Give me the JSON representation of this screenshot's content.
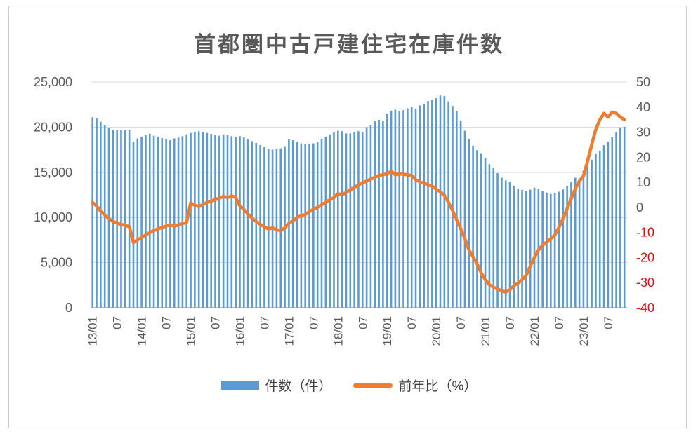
{
  "chart_data": {
    "type": "combo_bar_line",
    "title": "首都圏中古戸建住宅在庫件数",
    "legend_position": "bottom",
    "grid": true,
    "colors": {
      "bar": "#5B9BD5",
      "line": "#ED7D31",
      "axis_text": "#595959",
      "negative_tick": "#FF0000",
      "gridline": "#D9D9D9",
      "axis_line": "#BFBFBF"
    },
    "categories": [
      "13/01",
      "13/02",
      "13/03",
      "13/04",
      "13/05",
      "13/06",
      "13/07",
      "13/08",
      "13/09",
      "13/10",
      "13/11",
      "13/12",
      "14/01",
      "14/02",
      "14/03",
      "14/04",
      "14/05",
      "14/06",
      "14/07",
      "14/08",
      "14/09",
      "14/10",
      "14/11",
      "14/12",
      "15/01",
      "15/02",
      "15/03",
      "15/04",
      "15/05",
      "15/06",
      "15/07",
      "15/08",
      "15/09",
      "15/10",
      "15/11",
      "15/12",
      "16/01",
      "16/02",
      "16/03",
      "16/04",
      "16/05",
      "16/06",
      "16/07",
      "16/08",
      "16/09",
      "16/10",
      "16/11",
      "16/12",
      "17/01",
      "17/02",
      "17/03",
      "17/04",
      "17/05",
      "17/06",
      "17/07",
      "17/08",
      "17/09",
      "17/10",
      "17/11",
      "17/12",
      "18/01",
      "18/02",
      "18/03",
      "18/04",
      "18/05",
      "18/06",
      "18/07",
      "18/08",
      "18/09",
      "18/10",
      "18/11",
      "18/12",
      "19/01",
      "19/02",
      "19/03",
      "19/04",
      "19/05",
      "19/06",
      "19/07",
      "19/08",
      "19/09",
      "19/10",
      "19/11",
      "19/12",
      "20/01",
      "20/02",
      "20/03",
      "20/04",
      "20/05",
      "20/06",
      "20/07",
      "20/08",
      "20/09",
      "20/10",
      "20/11",
      "20/12",
      "21/01",
      "21/02",
      "21/03",
      "21/04",
      "21/05",
      "21/06",
      "21/07",
      "21/08",
      "21/09",
      "21/10",
      "21/11",
      "21/12",
      "22/01",
      "22/02",
      "22/03",
      "22/04",
      "22/05",
      "22/06",
      "22/07",
      "22/08",
      "22/09",
      "22/10",
      "22/11",
      "22/12",
      "23/01",
      "23/02",
      "23/03",
      "23/04",
      "23/05",
      "23/06",
      "23/07",
      "23/08",
      "23/09",
      "23/10",
      "23/11"
    ],
    "series": [
      {
        "name": "件数（件）",
        "type": "bar",
        "axis": "left",
        "color": "#5B9BD5",
        "values": [
          21100,
          21000,
          20600,
          20250,
          19950,
          19700,
          19650,
          19700,
          19650,
          19700,
          18400,
          18750,
          18950,
          19100,
          19270,
          19050,
          18950,
          18800,
          18700,
          18550,
          18750,
          18850,
          19000,
          19200,
          19350,
          19500,
          19550,
          19450,
          19350,
          19250,
          19150,
          19050,
          19200,
          19100,
          19000,
          18900,
          19000,
          18850,
          18650,
          18450,
          18250,
          18000,
          17800,
          17600,
          17500,
          17550,
          17650,
          17900,
          18650,
          18550,
          18350,
          18200,
          18150,
          18100,
          18200,
          18350,
          18700,
          18950,
          19200,
          19400,
          19600,
          19550,
          19300,
          19300,
          19450,
          19550,
          19450,
          20000,
          20250,
          20650,
          20800,
          20700,
          21500,
          21800,
          21950,
          21800,
          21900,
          22100,
          22200,
          22050,
          22400,
          22600,
          22900,
          23000,
          23200,
          23500,
          23450,
          22850,
          22350,
          21800,
          20700,
          19600,
          18700,
          17950,
          17450,
          17100,
          16550,
          15900,
          15500,
          14900,
          14400,
          14100,
          13900,
          13480,
          13200,
          13050,
          12950,
          13080,
          13300,
          13150,
          12900,
          12750,
          12600,
          12650,
          12850,
          13100,
          13500,
          13900,
          14400,
          14300,
          15200,
          15850,
          16400,
          17050,
          17400,
          18000,
          18400,
          18900,
          19400,
          19950,
          20050
        ]
      },
      {
        "name": "前年比（%）",
        "type": "line",
        "axis": "right",
        "color": "#ED7D31",
        "values": [
          2.0,
          0.5,
          -1.5,
          -3.0,
          -4.5,
          -5.5,
          -6.3,
          -6.8,
          -7.2,
          -7.7,
          -14.0,
          -13.0,
          -12.0,
          -11.0,
          -10.0,
          -9.2,
          -8.6,
          -8.0,
          -7.4,
          -6.9,
          -7.5,
          -7.0,
          -6.5,
          -6.0,
          1.8,
          0.8,
          0.3,
          1.2,
          2.0,
          2.5,
          3.1,
          3.7,
          4.4,
          3.9,
          4.6,
          3.9,
          0.6,
          -0.8,
          -2.6,
          -4.4,
          -5.6,
          -6.8,
          -7.7,
          -8.6,
          -8.1,
          -8.9,
          -9.3,
          -8.1,
          -6.3,
          -5.4,
          -4.0,
          -3.3,
          -2.8,
          -1.7,
          -0.7,
          0.0,
          1.1,
          2.0,
          3.1,
          3.9,
          5.5,
          5.0,
          6.0,
          7.0,
          8.0,
          9.0,
          9.8,
          10.5,
          11.3,
          12.0,
          12.8,
          13.0,
          13.4,
          14.5,
          13.0,
          13.4,
          13.2,
          13.0,
          12.8,
          11.0,
          10.2,
          9.6,
          9.0,
          8.5,
          7.3,
          6.2,
          4.8,
          2.0,
          -1.2,
          -4.9,
          -8.5,
          -12.5,
          -16.9,
          -19.7,
          -22.5,
          -26.1,
          -28.9,
          -30.8,
          -31.8,
          -32.5,
          -33.2,
          -33.8,
          -32.8,
          -31.2,
          -30.2,
          -28.9,
          -27.0,
          -23.5,
          -20.0,
          -17.0,
          -15.0,
          -13.8,
          -12.5,
          -11.0,
          -8.0,
          -4.5,
          -0.5,
          3.5,
          7.5,
          10.5,
          12.5,
          18.5,
          25.0,
          31.0,
          35.0,
          37.5,
          36.0,
          38.0,
          37.5,
          36.0,
          35.0
        ]
      }
    ],
    "x_ticks": [
      {
        "index": 0,
        "label": "13/01"
      },
      {
        "index": 6,
        "label": "07"
      },
      {
        "index": 12,
        "label": "14/01"
      },
      {
        "index": 18,
        "label": "07"
      },
      {
        "index": 24,
        "label": "15/01"
      },
      {
        "index": 30,
        "label": "07"
      },
      {
        "index": 36,
        "label": "16/01"
      },
      {
        "index": 42,
        "label": "07"
      },
      {
        "index": 48,
        "label": "17/01"
      },
      {
        "index": 54,
        "label": "07"
      },
      {
        "index": 60,
        "label": "18/01"
      },
      {
        "index": 66,
        "label": "07"
      },
      {
        "index": 72,
        "label": "19/01"
      },
      {
        "index": 78,
        "label": "07"
      },
      {
        "index": 84,
        "label": "20/01"
      },
      {
        "index": 90,
        "label": "07"
      },
      {
        "index": 96,
        "label": "21/01"
      },
      {
        "index": 102,
        "label": "07"
      },
      {
        "index": 108,
        "label": "22/01"
      },
      {
        "index": 114,
        "label": "07"
      },
      {
        "index": 120,
        "label": "23/01"
      },
      {
        "index": 126,
        "label": "07"
      }
    ],
    "y_left": {
      "min": 0,
      "max": 25000,
      "step": 5000,
      "ticks": [
        {
          "v": 0,
          "label": "0"
        },
        {
          "v": 5000,
          "label": "5,000"
        },
        {
          "v": 10000,
          "label": "10,000"
        },
        {
          "v": 15000,
          "label": "15,000"
        },
        {
          "v": 20000,
          "label": "20,000"
        },
        {
          "v": 25000,
          "label": "25,000"
        }
      ]
    },
    "y_right": {
      "min": -40,
      "max": 50,
      "step": 10,
      "ticks": [
        {
          "v": 50,
          "label": "50"
        },
        {
          "v": 40,
          "label": "40"
        },
        {
          "v": 30,
          "label": "30"
        },
        {
          "v": 20,
          "label": "20"
        },
        {
          "v": 10,
          "label": "10"
        },
        {
          "v": 0,
          "label": "0"
        },
        {
          "v": -10,
          "label": "-10"
        },
        {
          "v": -20,
          "label": "-20"
        },
        {
          "v": -30,
          "label": "-30"
        },
        {
          "v": -40,
          "label": "-40"
        }
      ]
    }
  }
}
